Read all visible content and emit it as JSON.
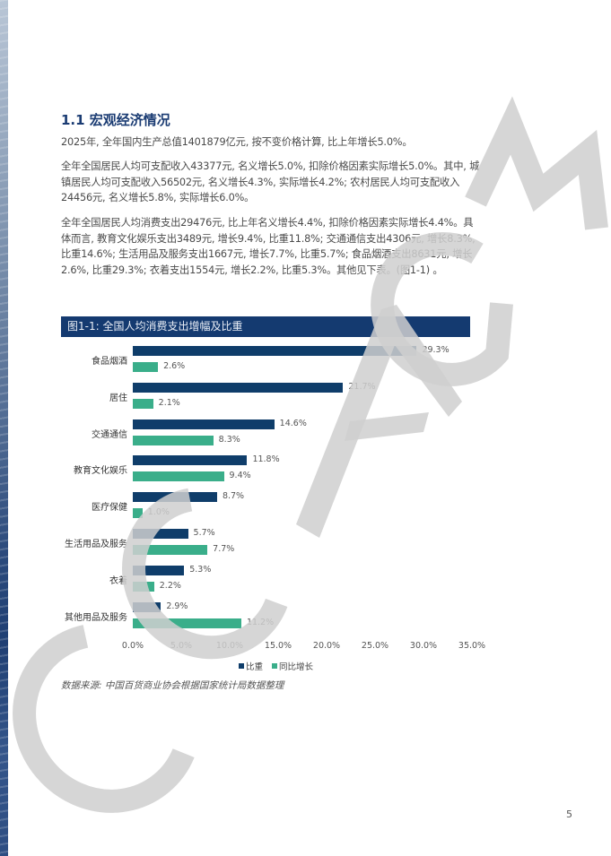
{
  "section": {
    "title": "1.1 宏观经济情况",
    "paragraphs": [
      "2025年, 全年国内生产总值1401879亿元, 按不变价格计算, 比上年增长5.0%。",
      "全年全国居民人均可支配收入43377元, 名义增长5.0%, 扣除价格因素实际增长5.0%。其中, 城镇居民人均可支配收入56502元, 名义增长4.3%, 实际增长4.2%; 农村居民人均可支配收入24456元, 名义增长5.8%, 实际增长6.0%。",
      "全年全国居民人均消费支出29476元, 比上年名义增长4.4%, 扣除价格因素实际增长4.4%。具体而言, 教育文化娱乐支出3489元, 增长9.4%, 比重11.8%; 交通通信支出4306元, 增长8.3%, 比重14.6%; 生活用品及服务支出1667元, 增长7.7%, 比重5.7%; 食品烟酒支出8631元, 增长2.6%, 比重29.3%; 衣着支出1554元, 增长2.2%, 比重5.3%。其他见下表。(图1-1) 。"
    ]
  },
  "figure": {
    "title": "图1-1: 全国人均消费支出增幅及比重",
    "source": "数据来源: 中国百货商业协会根据国家统计局数据整理"
  },
  "colors": {
    "share": "#0f3d6a",
    "growth": "#3aae8a",
    "header": "#143a70"
  },
  "chart_data": {
    "type": "bar",
    "orientation": "horizontal",
    "title": "图1-1: 全国人均消费支出增幅及比重",
    "categories": [
      "食品烟酒",
      "居住",
      "交通通信",
      "教育文化娱乐",
      "医疗保健",
      "生活用品及服务",
      "衣着",
      "其他用品及服务"
    ],
    "series": [
      {
        "name": "比重",
        "values": [
          29.3,
          21.7,
          14.6,
          11.8,
          8.7,
          5.7,
          5.3,
          2.9
        ],
        "labels": [
          "29.3%",
          "21.7%",
          "14.6%",
          "11.8%",
          "8.7%",
          "5.7%",
          "5.3%",
          "2.9%"
        ]
      },
      {
        "name": "同比增长",
        "values": [
          2.6,
          2.1,
          8.3,
          9.4,
          1.0,
          7.7,
          2.2,
          11.2
        ],
        "labels": [
          "2.6%",
          "2.1%",
          "8.3%",
          "9.4%",
          "1.0%",
          "7.7%",
          "2.2%",
          "11.2%"
        ]
      }
    ],
    "xticks": [
      "0.0%",
      "5.0%",
      "10.0%",
      "15.0%",
      "20.0%",
      "25.0%",
      "30.0%",
      "35.0%"
    ],
    "xlim": [
      0,
      35
    ],
    "xlabel": "",
    "ylabel": "",
    "grid": false,
    "legend_position": "bottom"
  },
  "watermark": "CCAGM",
  "page_number": "5"
}
